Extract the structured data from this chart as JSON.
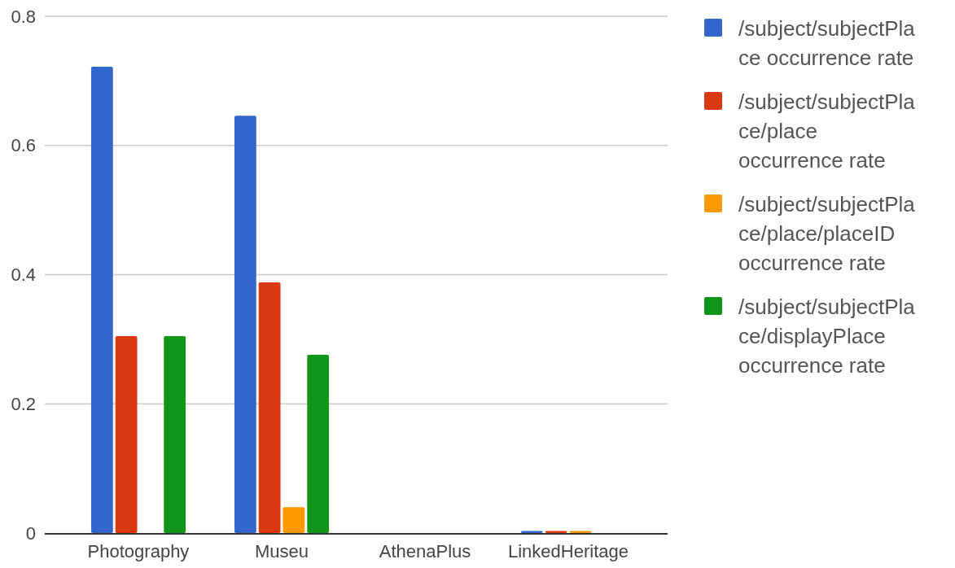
{
  "chart_data": {
    "type": "bar",
    "categories": [
      "Photography",
      "Museu",
      "AthenaPlus",
      "LinkedHeritage"
    ],
    "series": [
      {
        "name": "/subject/subjectPlace occurrence rate",
        "color": "#3366cc",
        "values": [
          0.722,
          0.646,
          0,
          0.003
        ]
      },
      {
        "name": "/subject/subjectPlace/place occurrence rate",
        "color": "#dc3912",
        "values": [
          0.305,
          0.388,
          0,
          0.003
        ]
      },
      {
        "name": "/subject/subjectPlace/place/placeID occurrence rate",
        "color": "#ff9900",
        "values": [
          0,
          0.04,
          0,
          0.003
        ]
      },
      {
        "name": "/subject/subjectPlace/displayPlace occurrence rate",
        "color": "#109618",
        "values": [
          0.305,
          0.276,
          0,
          0
        ]
      }
    ],
    "ylim": [
      0,
      0.8
    ],
    "yticks": [
      0,
      0.2,
      0.4,
      0.6,
      0.8
    ],
    "grid": "y",
    "legend": "right"
  }
}
